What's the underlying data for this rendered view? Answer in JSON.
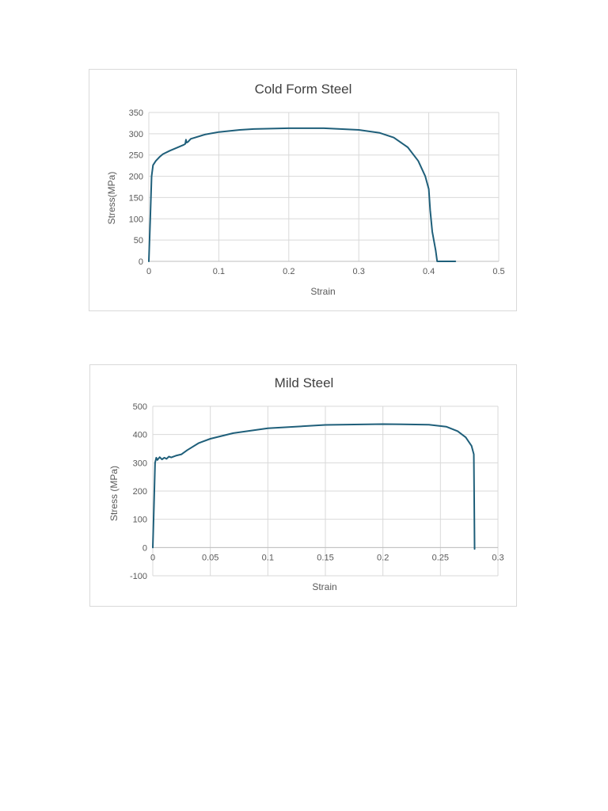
{
  "chart_data": [
    {
      "type": "line",
      "title": "Cold Form Steel",
      "xlabel": "Strain",
      "ylabel": "Stress(MPa)",
      "xlim": [
        0,
        0.5
      ],
      "ylim": [
        0,
        350
      ],
      "xticks": [
        "0",
        "0.1",
        "0.2",
        "0.3",
        "0.4",
        "0.5"
      ],
      "yticks": [
        "0",
        "50",
        "100",
        "150",
        "200",
        "250",
        "300",
        "350"
      ],
      "grid": true,
      "legend": "none",
      "color": "#1f5f7a",
      "series": [
        {
          "x": [
            0,
            0.002,
            0.004,
            0.006,
            0.01,
            0.015,
            0.02,
            0.03,
            0.04,
            0.05,
            0.052,
            0.053,
            0.054,
            0.056,
            0.06,
            0.08,
            0.1,
            0.13,
            0.15,
            0.2,
            0.25,
            0.3,
            0.33,
            0.35,
            0.37,
            0.385,
            0.395,
            0.4,
            0.402,
            0.405,
            0.41,
            0.412,
            0.42,
            0.438
          ],
          "y": [
            0,
            100,
            200,
            226,
            236,
            245,
            252,
            260,
            267,
            274,
            276,
            286,
            279,
            281,
            288,
            298,
            304,
            309,
            311,
            313,
            313,
            309,
            302,
            291,
            268,
            236,
            200,
            170,
            120,
            70,
            25,
            0,
            0,
            0
          ]
        }
      ]
    },
    {
      "type": "line",
      "title": "Mild Steel",
      "xlabel": "Strain",
      "ylabel": "Stress (MPa)",
      "xlim": [
        0,
        0.3
      ],
      "ylim": [
        -100,
        500
      ],
      "xticks": [
        "0",
        "0.05",
        "0.1",
        "0.15",
        "0.2",
        "0.25",
        "0.3"
      ],
      "yticks": [
        "-100",
        "0",
        "100",
        "200",
        "300",
        "400",
        "500"
      ],
      "grid": true,
      "legend": "none",
      "color": "#1f5f7a",
      "series": [
        {
          "x": [
            0,
            0.001,
            0.002,
            0.003,
            0.004,
            0.006,
            0.008,
            0.01,
            0.012,
            0.014,
            0.016,
            0.02,
            0.025,
            0.03,
            0.04,
            0.05,
            0.07,
            0.1,
            0.15,
            0.2,
            0.24,
            0.255,
            0.265,
            0.272,
            0.277,
            0.279,
            0.2795,
            0.2797
          ],
          "y": [
            0,
            150,
            300,
            318,
            310,
            320,
            312,
            318,
            314,
            322,
            319,
            325,
            330,
            345,
            370,
            385,
            405,
            422,
            434,
            437,
            435,
            428,
            412,
            390,
            360,
            330,
            100,
            -5
          ]
        }
      ]
    }
  ]
}
